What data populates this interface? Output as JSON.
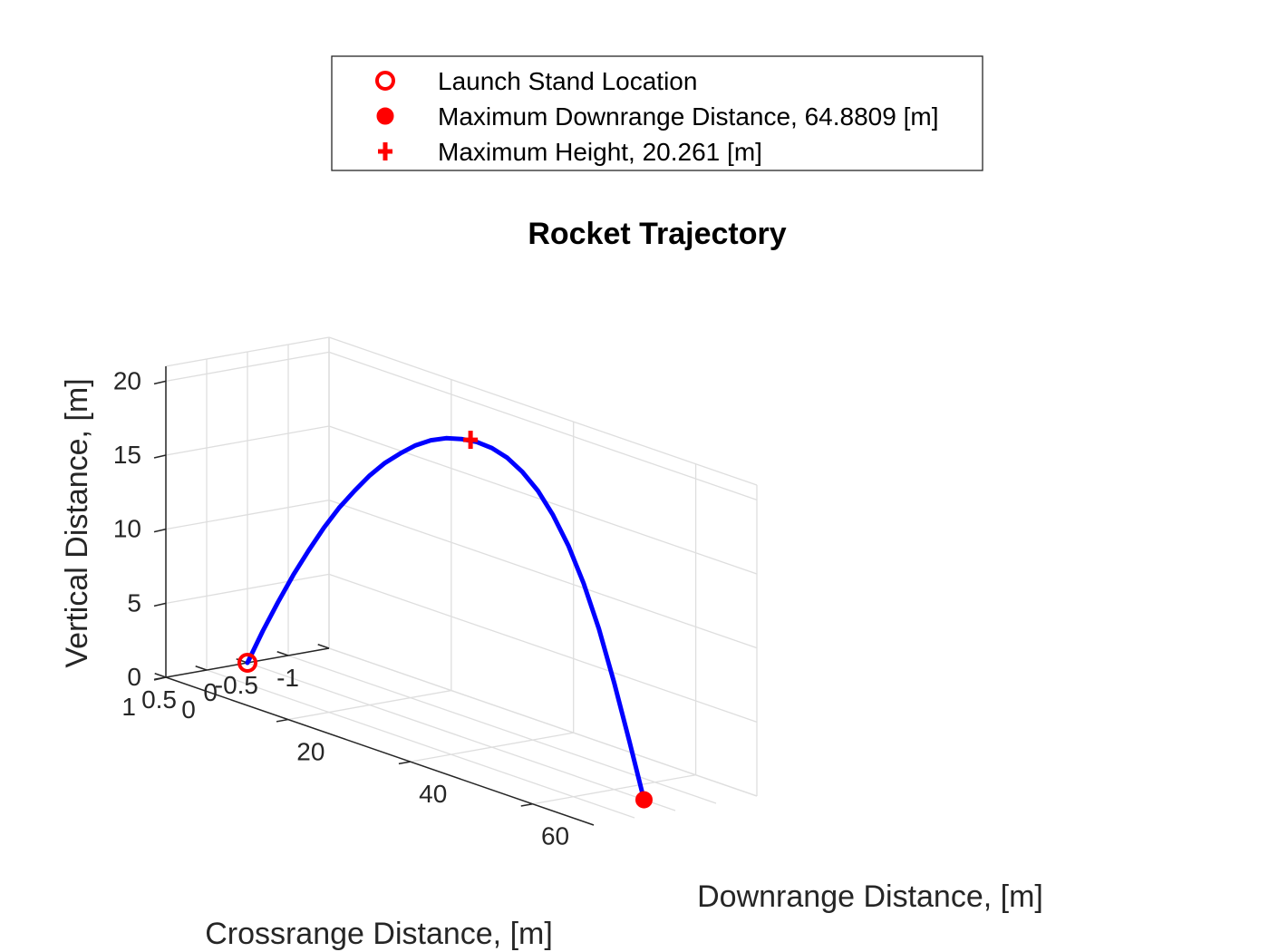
{
  "chart_data": {
    "type": "line",
    "view": "3d",
    "title": "Rocket Trajectory",
    "xlabel": "Downrange Distance, [m]",
    "ylabel": "Crossrange Distance, [m]",
    "zlabel": "Vertical Distance, [m]",
    "xlim": [
      0,
      70
    ],
    "ylim": [
      -1,
      1
    ],
    "zlim": [
      0,
      21
    ],
    "x_ticks": [
      0,
      20,
      40,
      60
    ],
    "x_tick_labels": [
      "0",
      "20",
      "40",
      "60"
    ],
    "y_ticks": [
      1,
      0.5,
      0,
      -0.5,
      -1
    ],
    "y_tick_labels": [
      "1",
      "0.5",
      "0",
      "-0.5",
      "-1"
    ],
    "z_ticks": [
      0,
      5,
      10,
      15,
      20
    ],
    "z_tick_labels": [
      "0",
      "5",
      "10",
      "15",
      "20"
    ],
    "grid": true,
    "legend_position": "top-center, above axes",
    "series": [
      {
        "kind": "line",
        "color": "#0000ff",
        "x": [
          0,
          2.5,
          5,
          7.5,
          10,
          12.5,
          15,
          17.5,
          20,
          22.5,
          25,
          27.5,
          30,
          32.5,
          35,
          37.5,
          40,
          42.5,
          45,
          47.5,
          50,
          52.5,
          55,
          57.5,
          60,
          62.5,
          64.8809
        ],
        "y": [
          0,
          0,
          0,
          0,
          0,
          0,
          0,
          0,
          0,
          0,
          0,
          0,
          0,
          0,
          0,
          0,
          0,
          0,
          0,
          0,
          0,
          0,
          0,
          0,
          0,
          0,
          0
        ],
        "z": [
          0,
          2.5,
          4.8,
          7.0,
          9.0,
          10.9,
          12.6,
          14.1,
          15.5,
          16.7,
          17.7,
          18.6,
          19.3,
          19.8,
          20.1,
          20.26,
          20.2,
          19.9,
          19.3,
          18.4,
          17.1,
          15.4,
          13.2,
          10.5,
          7.2,
          3.6,
          0
        ]
      },
      {
        "kind": "marker",
        "name": "Launch Stand Location",
        "marker": "open-circle",
        "color": "#ff0000",
        "x": [
          0
        ],
        "y": [
          0
        ],
        "z": [
          0
        ]
      },
      {
        "kind": "marker",
        "name": "Maximum Downrange Distance, 64.8809 [m]",
        "marker": "filled-circle",
        "color": "#ff0000",
        "x": [
          64.8809
        ],
        "y": [
          0
        ],
        "z": [
          0
        ]
      },
      {
        "kind": "marker",
        "name": "Maximum Height, 20.261 [m]",
        "marker": "plus",
        "color": "#ff0000",
        "x": [
          36.5
        ],
        "y": [
          0
        ],
        "z": [
          20.261
        ]
      }
    ]
  }
}
